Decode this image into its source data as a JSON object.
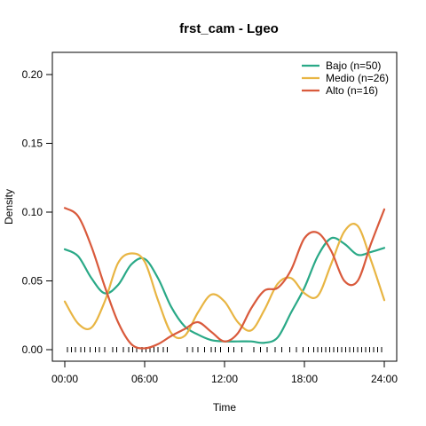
{
  "chart_data": {
    "type": "line",
    "title": "frst_cam - Lgeo",
    "xlabel": "Time",
    "ylabel": "Density",
    "xlim": [
      0,
      24
    ],
    "ylim": [
      0,
      0.2
    ],
    "x_ticks": [
      0,
      6,
      12,
      18,
      24
    ],
    "x_tick_labels": [
      "00:00",
      "06:00",
      "12:00",
      "18:00",
      "24:00"
    ],
    "y_ticks": [
      0,
      0.05,
      0.1,
      0.15,
      0.2
    ],
    "y_tick_labels": [
      "0.00",
      "0.05",
      "0.10",
      "0.15",
      "0.20"
    ],
    "legend_position": "top-right",
    "series": [
      {
        "name": "Bajo (n=50)",
        "color": "#2aa987",
        "x": [
          0,
          1,
          2,
          3,
          4,
          5,
          6,
          7,
          8,
          9,
          10,
          11,
          12,
          13,
          14,
          15,
          16,
          17,
          18,
          19,
          20,
          21,
          22,
          23,
          24
        ],
        "y": [
          0.073,
          0.068,
          0.052,
          0.041,
          0.047,
          0.062,
          0.066,
          0.052,
          0.031,
          0.017,
          0.011,
          0.007,
          0.006,
          0.006,
          0.006,
          0.005,
          0.009,
          0.027,
          0.045,
          0.068,
          0.081,
          0.077,
          0.069,
          0.071,
          0.074
        ]
      },
      {
        "name": "Medio (n=26)",
        "color": "#e8b543",
        "x": [
          0,
          1,
          2,
          3,
          4,
          5,
          6,
          7,
          8,
          9,
          10,
          11,
          12,
          13,
          14,
          15,
          16,
          17,
          18,
          19,
          20,
          21,
          22,
          23,
          24
        ],
        "y": [
          0.035,
          0.019,
          0.016,
          0.035,
          0.063,
          0.07,
          0.064,
          0.036,
          0.012,
          0.01,
          0.027,
          0.04,
          0.035,
          0.02,
          0.014,
          0.029,
          0.048,
          0.052,
          0.041,
          0.039,
          0.062,
          0.086,
          0.09,
          0.065,
          0.036
        ]
      },
      {
        "name": "Alto (n=16)",
        "color": "#d95a3c",
        "x": [
          0,
          1,
          2,
          3,
          4,
          5,
          6,
          7,
          8,
          9,
          10,
          11,
          12,
          13,
          14,
          15,
          16,
          17,
          18,
          19,
          20,
          21,
          22,
          23,
          24
        ],
        "y": [
          0.103,
          0.097,
          0.075,
          0.046,
          0.02,
          0.004,
          0.001,
          0.004,
          0.01,
          0.015,
          0.02,
          0.013,
          0.006,
          0.012,
          0.03,
          0.043,
          0.045,
          0.058,
          0.081,
          0.085,
          0.072,
          0.05,
          0.05,
          0.077,
          0.102
        ]
      }
    ],
    "rug_x": [
      0.2,
      0.5,
      0.8,
      1.2,
      1.5,
      1.9,
      2.3,
      2.6,
      3.0,
      3.6,
      3.9,
      4.4,
      4.8,
      5.1,
      5.4,
      5.8,
      6.1,
      6.4,
      6.7,
      7.0,
      7.4,
      7.7,
      9.2,
      9.6,
      10.0,
      10.5,
      11.0,
      11.3,
      11.7,
      12.3,
      12.7,
      13.3,
      14.2,
      14.7,
      15.2,
      15.8,
      16.3,
      16.9,
      17.4,
      17.9,
      18.3,
      18.7,
      19.0,
      19.3,
      19.6,
      19.9,
      20.2,
      20.5,
      20.8,
      21.1,
      21.4,
      21.7,
      22.0,
      22.3,
      22.6,
      22.9,
      23.2,
      23.5,
      23.8
    ]
  }
}
